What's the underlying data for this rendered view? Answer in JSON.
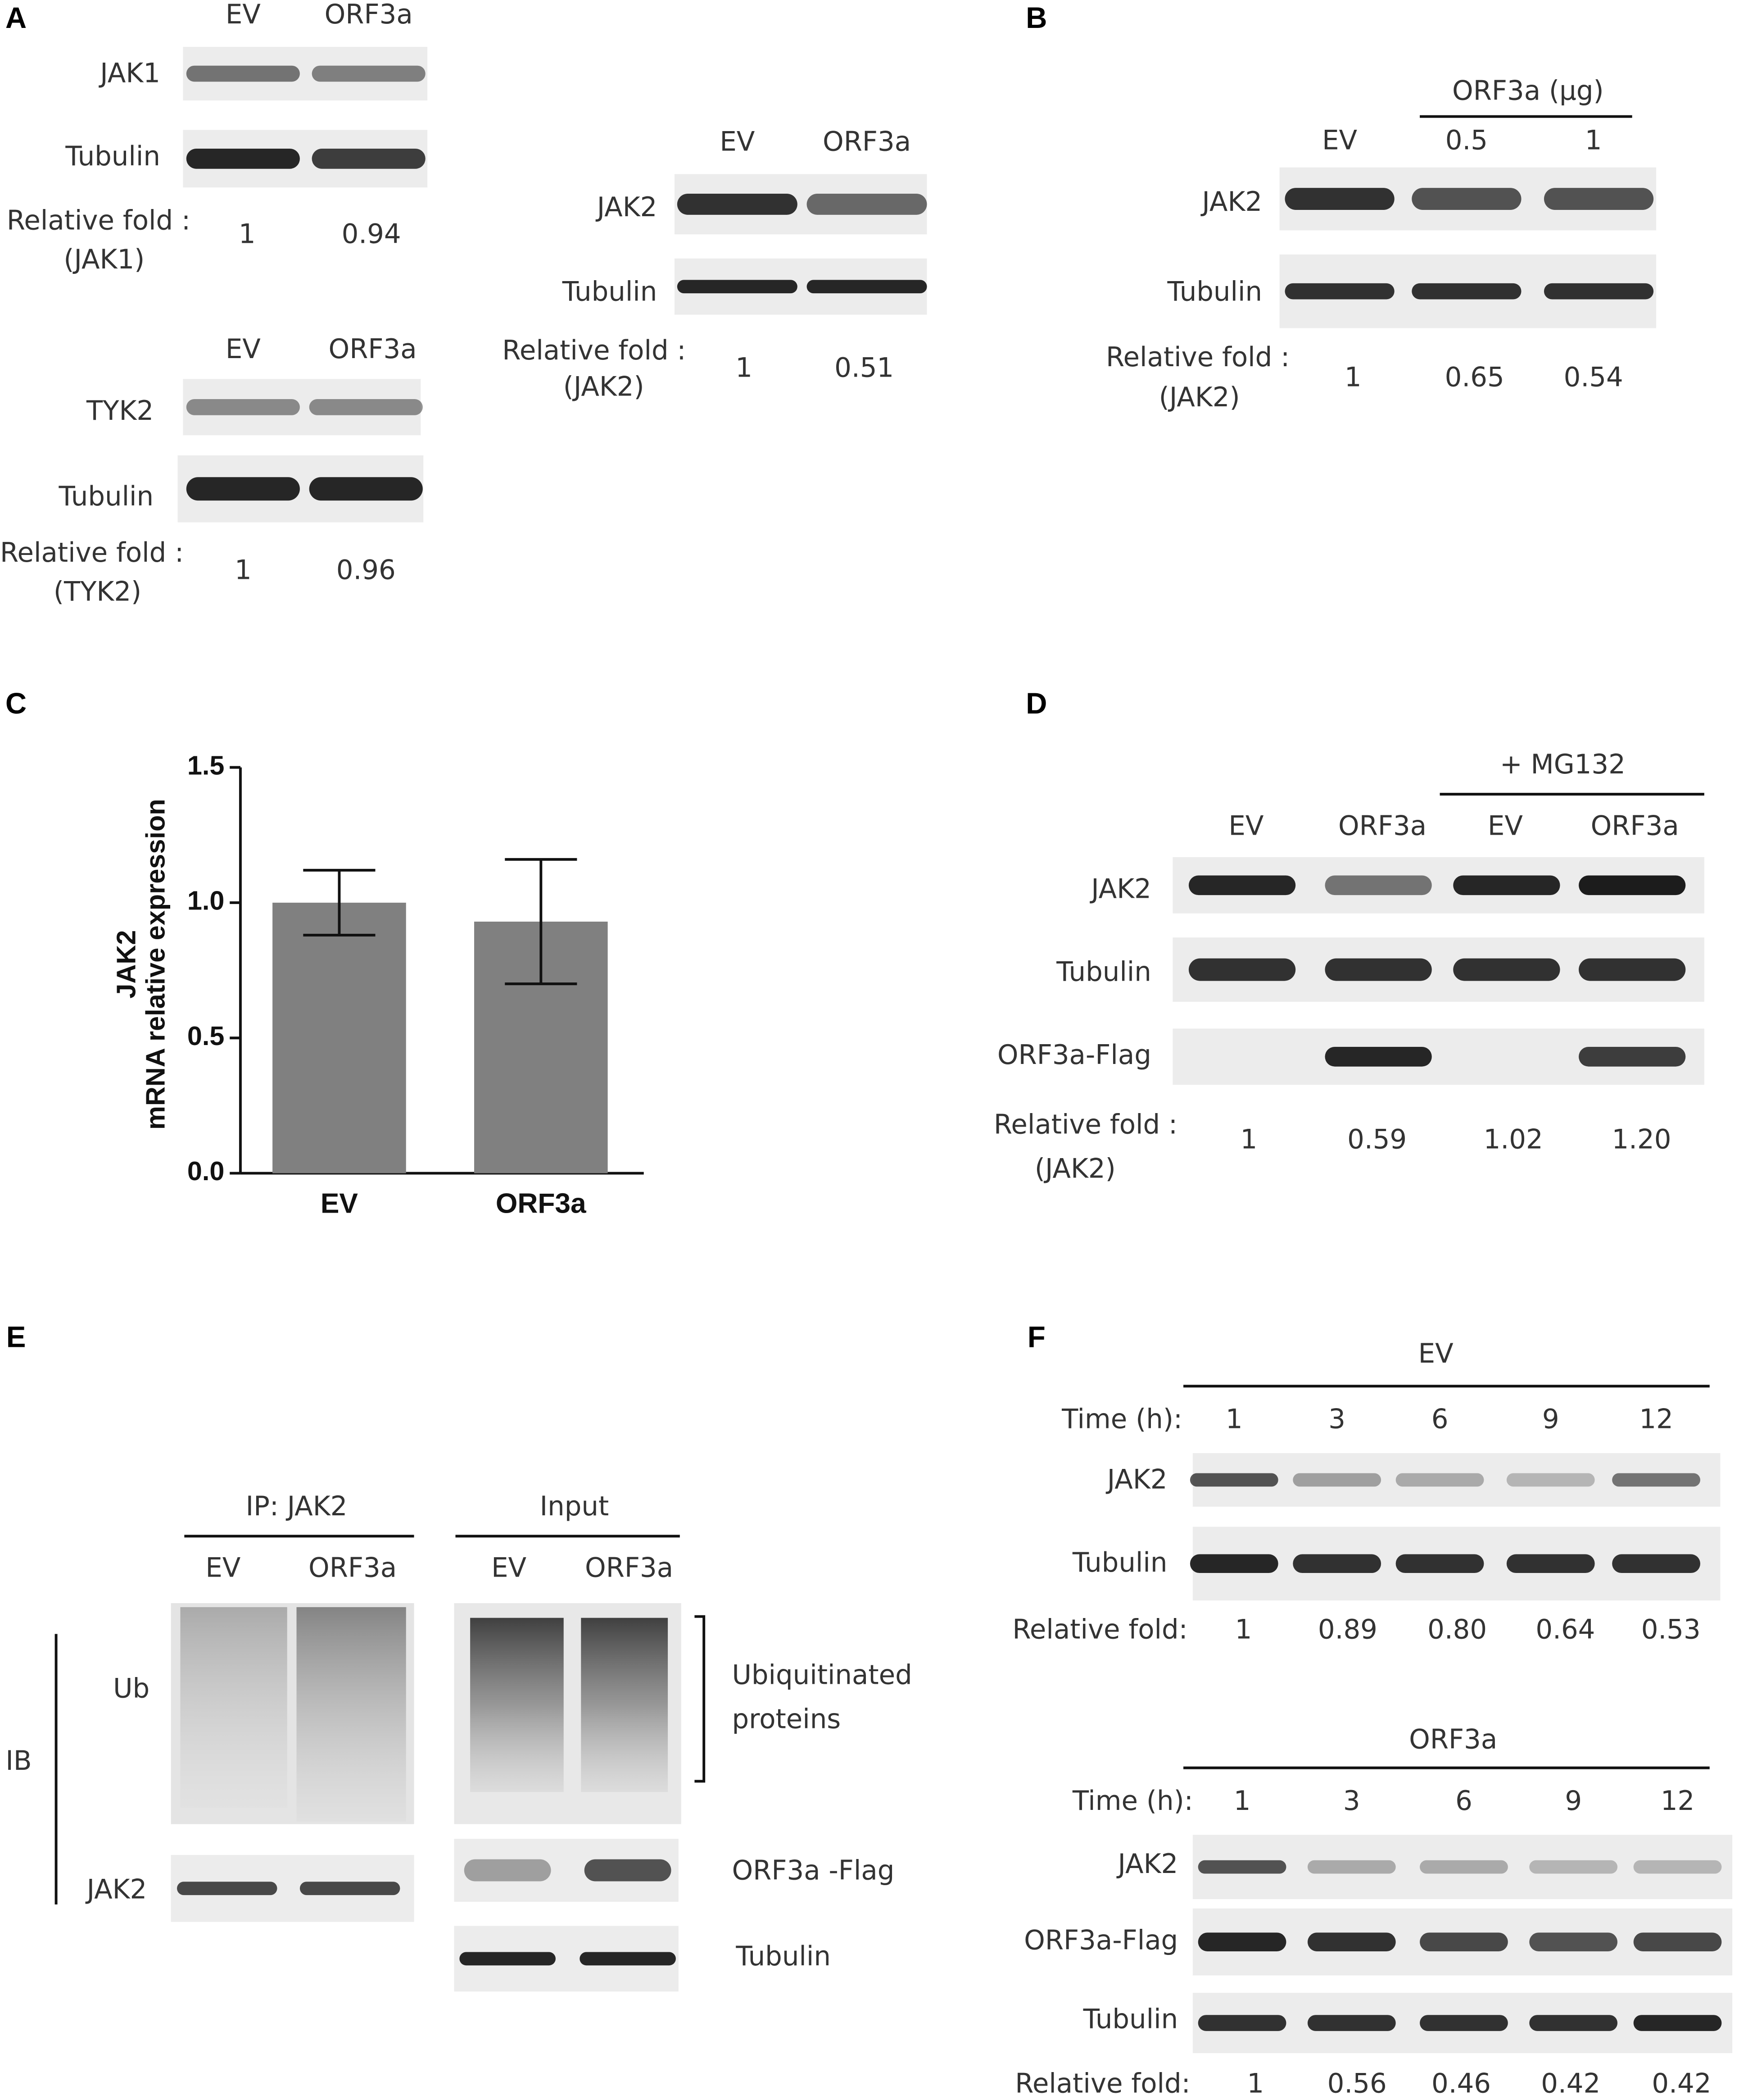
{
  "panel_labels": [
    "A",
    "B",
    "C",
    "D",
    "E",
    "F"
  ],
  "A": {
    "jak1": {
      "lanes": [
        "EV",
        "ORF3a"
      ],
      "rows": [
        "JAK1",
        "Tubulin"
      ],
      "fold_label": "Relative fold :",
      "fold_target": "(JAK1)",
      "folds": [
        "1",
        "0.94"
      ]
    },
    "tyk2": {
      "lanes": [
        "EV",
        "ORF3a"
      ],
      "rows": [
        "TYK2",
        "Tubulin"
      ],
      "fold_label": "Relative fold :",
      "fold_target": "(TYK2)",
      "folds": [
        "1",
        "0.96"
      ]
    },
    "jak2": {
      "lanes": [
        "EV",
        "ORF3a"
      ],
      "rows": [
        "JAK2",
        "Tubulin"
      ],
      "fold_label": "Relative fold :",
      "fold_target": "(JAK2)",
      "folds": [
        "1",
        "0.51"
      ]
    }
  },
  "B": {
    "header": "ORF3a (μg)",
    "lanes": [
      "EV",
      "0.5",
      "1"
    ],
    "rows": [
      "JAK2",
      "Tubulin"
    ],
    "fold_label": "Relative fold :",
    "fold_target": "(JAK2)",
    "folds": [
      "1",
      "0.65",
      "0.54"
    ]
  },
  "chart_data": {
    "type": "bar",
    "y_label": [
      "JAK2",
      "mRNA relative expression"
    ],
    "categories": [
      "EV",
      "ORF3a"
    ],
    "values": [
      1.0,
      0.93
    ],
    "errors": [
      0.12,
      0.23
    ],
    "color": "#808080",
    "ylim": [
      0,
      1.5
    ],
    "yticks": [
      {
        "value": 0,
        "label": "0.0"
      },
      {
        "value": 0.5,
        "label": "0.5"
      },
      {
        "value": 1,
        "label": "1.0"
      },
      {
        "value": 1.5,
        "label": "1.5"
      }
    ]
  },
  "D": {
    "header": "+ MG132",
    "lanes": [
      "EV",
      "ORF3a",
      "EV",
      "ORF3a"
    ],
    "rows": [
      "JAK2",
      "Tubulin",
      "ORF3a-Flag"
    ],
    "fold_label": "Relative fold :",
    "fold_target": "(JAK2)",
    "folds": [
      "1",
      "0.59",
      "1.02",
      "1.20"
    ]
  },
  "E": {
    "ip_header": "IP: JAK2",
    "ip_lanes": [
      "EV",
      "ORF3a"
    ],
    "input_header": "Input",
    "input_lanes": [
      "EV",
      "ORF3a"
    ],
    "ib": "IB",
    "ip_rows": [
      "Ub",
      "JAK2"
    ],
    "ubiquitinated": [
      "Ubiquitinated",
      "proteins"
    ],
    "input_rows": [
      "ORF3a -Flag",
      "Tubulin"
    ]
  },
  "F": {
    "ev": {
      "header": "EV",
      "time_label": "Time (h):",
      "times": [
        "1",
        "3",
        "6",
        "9",
        "12"
      ],
      "rows": [
        "JAK2",
        "Tubulin"
      ],
      "fold_label": "Relative fold:",
      "folds": [
        "1",
        "0.89",
        "0.80",
        "0.64",
        "0.53"
      ]
    },
    "orf3a": {
      "header": "ORF3a",
      "time_label": "Time (h):",
      "times": [
        "1",
        "3",
        "6",
        "9",
        "12"
      ],
      "rows": [
        "JAK2",
        "ORF3a-Flag",
        "Tubulin"
      ],
      "fold_label": "Relative fold:",
      "folds": [
        "1",
        "0.56",
        "0.46",
        "0.42",
        "0.42"
      ]
    }
  }
}
